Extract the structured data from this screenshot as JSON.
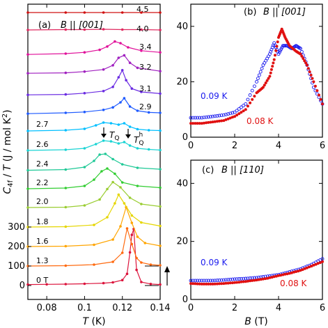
{
  "chart_data": [
    {
      "panel": "(a) B || [001]",
      "type": "line",
      "panel_label": "(a)",
      "field_condition": "B || [001]",
      "xlabel": "T (K)",
      "ylabel": "C4f / T (J / mol K²)",
      "xlim": [
        0.07,
        0.14
      ],
      "x_ticks": [
        0.08,
        0.1,
        0.12,
        0.14
      ],
      "y_ticks": [
        0,
        100,
        200,
        300
      ],
      "x_tick_labels": [
        "0.08",
        "0.1",
        "0.12",
        "0.14"
      ],
      "y_tick_labels": [
        "0",
        "100",
        "200",
        "300"
      ],
      "grid": false,
      "curves_offset": true,
      "annotations": [
        "T_Q",
        "T_Q^h"
      ],
      "series": [
        {
          "name": "0 T",
          "color": "#dc143c",
          "x": [
            0.07,
            0.08,
            0.09,
            0.1,
            0.11,
            0.115,
            0.12,
            0.1225,
            0.124,
            0.125,
            0.126,
            0.1275,
            0.13,
            0.135,
            0.14
          ],
          "y": [
            5,
            6,
            7,
            9,
            12,
            16,
            28,
            60,
            170,
            260,
            290,
            80,
            18,
            8,
            5
          ]
        },
        {
          "name": "1.3",
          "color": "#ff6a10",
          "x": [
            0.07,
            0.09,
            0.105,
            0.115,
            0.12,
            0.1225,
            0.125,
            0.1275,
            0.13,
            0.135,
            0.14
          ],
          "y": [
            2,
            3,
            6,
            14,
            40,
            110,
            65,
            25,
            12,
            6,
            4
          ]
        },
        {
          "name": "1.6",
          "color": "#ffa500",
          "x": [
            0.07,
            0.09,
            0.105,
            0.115,
            0.119,
            0.122,
            0.125,
            0.128,
            0.132,
            0.14
          ],
          "y": [
            2,
            3,
            7,
            22,
            60,
            115,
            70,
            30,
            12,
            4
          ]
        },
        {
          "name": "1.8",
          "color": "#e5d600",
          "x": [
            0.07,
            0.09,
            0.105,
            0.112,
            0.116,
            0.118,
            0.121,
            0.125,
            0.13,
            0.14
          ],
          "y": [
            2,
            3,
            8,
            30,
            70,
            95,
            70,
            35,
            15,
            5
          ]
        },
        {
          "name": "2.0",
          "color": "#9acd32",
          "x": [
            0.07,
            0.09,
            0.1,
            0.108,
            0.112,
            0.115,
            0.119,
            0.124,
            0.13,
            0.14
          ],
          "y": [
            2,
            3,
            8,
            25,
            55,
            75,
            60,
            30,
            12,
            5
          ]
        },
        {
          "name": "2.2",
          "color": "#32cd32",
          "x": [
            0.07,
            0.09,
            0.1,
            0.105,
            0.109,
            0.112,
            0.116,
            0.12,
            0.128,
            0.14
          ],
          "y": [
            2,
            4,
            10,
            28,
            52,
            60,
            45,
            20,
            10,
            5
          ]
        },
        {
          "name": "2.4",
          "color": "#20c997",
          "x": [
            0.07,
            0.09,
            0.1,
            0.105,
            0.108,
            0.111,
            0.115,
            0.12,
            0.128,
            0.14
          ],
          "y": [
            3,
            5,
            12,
            30,
            48,
            50,
            35,
            20,
            10,
            6
          ]
        },
        {
          "name": "2.6",
          "color": "#1ad4d4",
          "x": [
            0.07,
            0.09,
            0.1,
            0.106,
            0.11,
            0.114,
            0.118,
            0.121,
            0.124,
            0.128,
            0.134,
            0.14
          ],
          "y": [
            4,
            6,
            10,
            22,
            32,
            30,
            24,
            28,
            18,
            10,
            7,
            5
          ]
        },
        {
          "name": "2.7",
          "color": "#00bfff",
          "x": [
            0.07,
            0.09,
            0.1,
            0.106,
            0.11,
            0.114,
            0.118,
            0.121,
            0.124,
            0.128,
            0.134,
            0.14
          ],
          "y": [
            4,
            6,
            10,
            20,
            28,
            26,
            22,
            26,
            16,
            9,
            6,
            5
          ]
        },
        {
          "name": "2.9",
          "color": "#1e5aff",
          "x": [
            0.07,
            0.09,
            0.1,
            0.11,
            0.115,
            0.119,
            0.121,
            0.124,
            0.128,
            0.134,
            0.14
          ],
          "y": [
            3,
            5,
            7,
            12,
            18,
            30,
            40,
            20,
            10,
            6,
            5
          ]
        },
        {
          "name": "3.1",
          "color": "#6a2be2",
          "x": [
            0.07,
            0.09,
            0.1,
            0.11,
            0.115,
            0.118,
            0.12,
            0.122,
            0.125,
            0.13,
            0.14
          ],
          "y": [
            3,
            4,
            7,
            12,
            22,
            45,
            62,
            38,
            18,
            10,
            6
          ]
        },
        {
          "name": "3.2",
          "color": "#a020c0",
          "x": [
            0.07,
            0.09,
            0.1,
            0.11,
            0.115,
            0.118,
            0.121,
            0.124,
            0.128,
            0.14
          ],
          "y": [
            3,
            4,
            7,
            12,
            22,
            40,
            46,
            28,
            16,
            8
          ]
        },
        {
          "name": "3.4",
          "color": "#e0109a",
          "x": [
            0.07,
            0.09,
            0.1,
            0.108,
            0.112,
            0.116,
            0.119,
            0.123,
            0.13,
            0.14
          ],
          "y": [
            3,
            5,
            8,
            14,
            22,
            34,
            30,
            20,
            12,
            8
          ]
        },
        {
          "name": "4.0",
          "color": "#e02a60",
          "x": [
            0.07,
            0.09,
            0.1,
            0.11,
            0.12,
            0.13,
            0.14
          ],
          "y": [
            4,
            5,
            5,
            6,
            5,
            5,
            4
          ]
        },
        {
          "name": "4.5",
          "color": "#d01010",
          "x": [
            0.07,
            0.09,
            0.1,
            0.11,
            0.12,
            0.13,
            0.14
          ],
          "y": [
            4,
            4,
            4,
            4,
            4,
            4,
            4
          ]
        }
      ]
    },
    {
      "panel": "(b) B || [001]",
      "type": "scatter",
      "panel_label": "(b)",
      "field_condition": "B || [001]",
      "xlabel": "",
      "ylabel": "",
      "xlim": [
        0,
        6
      ],
      "ylim": [
        0,
        48
      ],
      "x_ticks": [
        0,
        2,
        4,
        6
      ],
      "y_ticks": [
        0,
        20,
        40
      ],
      "x_tick_labels": [
        "0",
        "2",
        "4",
        "6"
      ],
      "y_tick_labels": [
        "0",
        "20",
        "40"
      ],
      "grid": false,
      "series": [
        {
          "name": "0.09 K",
          "marker": "open-circle",
          "color": "#1a1aee",
          "x": [
            0.0,
            0.5,
            1.0,
            1.5,
            2.0,
            2.5,
            3.0,
            3.3,
            3.6,
            3.8,
            4.0,
            4.2,
            4.4,
            4.6,
            4.8,
            5.0,
            5.3,
            5.6,
            6.0
          ],
          "y": [
            7,
            7,
            7.5,
            8,
            9,
            12,
            20,
            26,
            30,
            34,
            30,
            33,
            33,
            32,
            33,
            32,
            26,
            18,
            12
          ]
        },
        {
          "name": "0.08 K",
          "marker": "filled-circle",
          "color": "#e01010",
          "x": [
            0.0,
            0.5,
            1.0,
            1.5,
            2.0,
            2.5,
            3.0,
            3.3,
            3.6,
            3.8,
            4.0,
            4.15,
            4.3,
            4.5,
            4.8,
            5.0,
            5.3,
            5.6,
            6.0
          ],
          "y": [
            5,
            5,
            5.5,
            6,
            7.5,
            10,
            16,
            18,
            22,
            28,
            36,
            39,
            36,
            33,
            31,
            30,
            26,
            20,
            12
          ]
        }
      ]
    },
    {
      "panel": "(c) B || [110]",
      "type": "scatter",
      "panel_label": "(c)",
      "field_condition": "B || [110]",
      "xlabel": "B (T)",
      "ylabel": "",
      "xlim": [
        0,
        6
      ],
      "ylim": [
        0,
        48
      ],
      "x_ticks": [
        0,
        2,
        4,
        6
      ],
      "y_ticks": [
        0,
        20,
        40
      ],
      "x_tick_labels": [
        "0",
        "2",
        "4",
        "6"
      ],
      "y_tick_labels": [
        "0",
        "20",
        "40"
      ],
      "grid": false,
      "series": [
        {
          "name": "0.09 K",
          "marker": "open-circle",
          "color": "#1a1aee",
          "x": [
            0.0,
            0.5,
            1.0,
            1.5,
            2.0,
            2.5,
            3.0,
            3.5,
            4.0,
            4.5,
            5.0,
            5.5,
            6.0
          ],
          "y": [
            6.5,
            6.5,
            6.5,
            6.7,
            7,
            7.2,
            7.5,
            8,
            8.5,
            9.5,
            10.5,
            12,
            14
          ]
        },
        {
          "name": "0.08 K",
          "marker": "filled-circle",
          "color": "#e01010",
          "x": [
            0.0,
            0.5,
            1.0,
            1.5,
            2.0,
            2.5,
            3.0,
            3.5,
            4.0,
            4.5,
            5.0,
            5.5,
            6.0
          ],
          "y": [
            5.5,
            5.3,
            5.3,
            5.5,
            5.8,
            6.2,
            6.7,
            7.3,
            8.2,
            9,
            10,
            11.5,
            13
          ]
        }
      ]
    }
  ]
}
